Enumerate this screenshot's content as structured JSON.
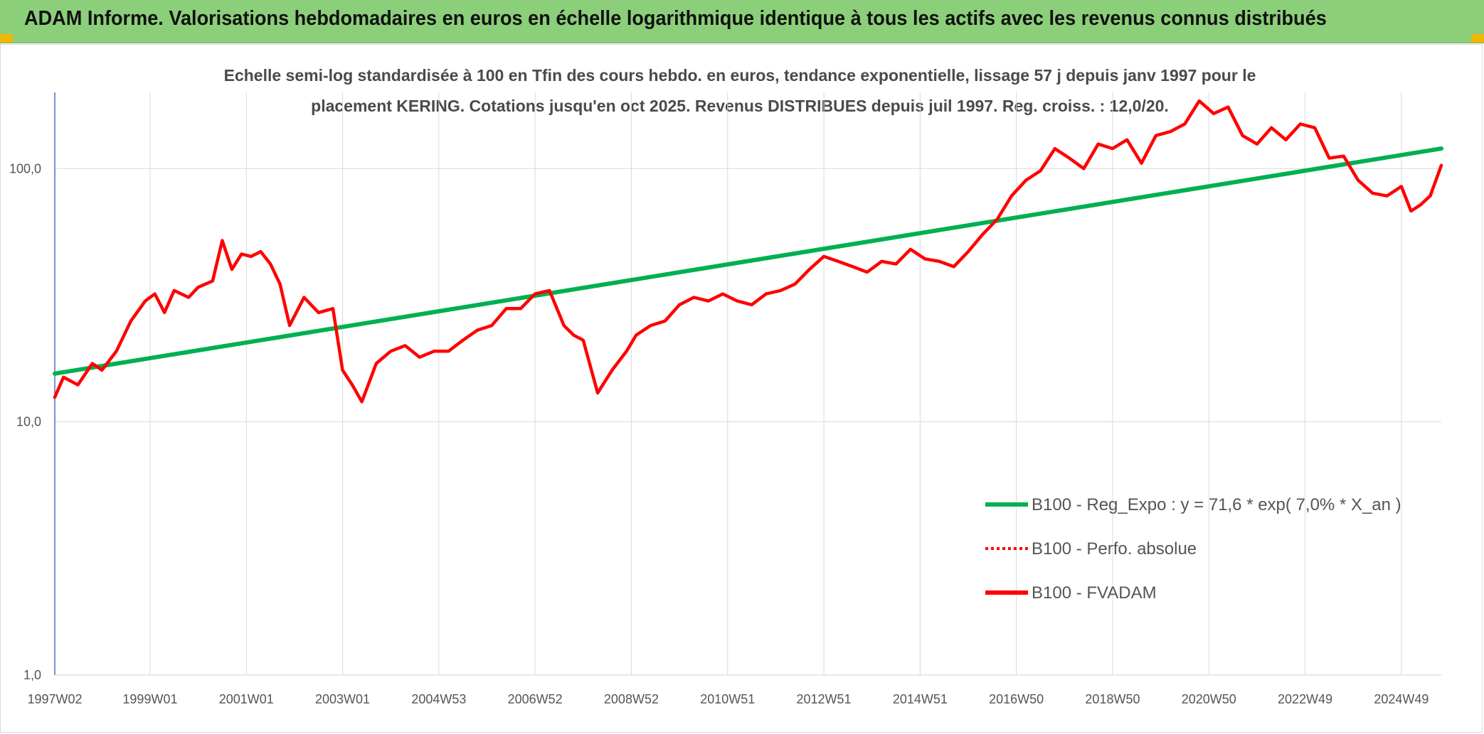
{
  "header": {
    "title": "ADAM Informe. Valorisations hebdomadaires en euros en échelle logarithmique identique à tous les actifs avec les revenus connus distribués"
  },
  "colors": {
    "banner": "#8ccf7a",
    "regression": "#00b050",
    "fvadam": "#ff0000",
    "perfo": "#ff0000",
    "axis_text": "#555555",
    "grid": "#d9d9d9"
  },
  "chart_data": {
    "type": "line",
    "title": "Echelle semi-log standardisée à 100 en Tfin des cours hebdo. en euros, tendance exponentielle, lissage 57 j depuis janv 1997 pour le",
    "subtitle": "placement KERING. Cotations jusqu'en oct 2025. Revenus DISTRIBUES depuis juil 1997. Reg. croiss. : 12,0/20.",
    "y_scale": "log",
    "ylim": [
      1,
      200
    ],
    "y_ticks": [
      {
        "value": 1,
        "label": "1,0"
      },
      {
        "value": 10,
        "label": "10,0"
      },
      {
        "value": 100,
        "label": "100,0"
      }
    ],
    "x_range": [
      1997.02,
      2025.83
    ],
    "x_ticks": [
      {
        "value": 1997.02,
        "label": "1997W02"
      },
      {
        "value": 1999.0,
        "label": "1999W01"
      },
      {
        "value": 2001.0,
        "label": "2001W01"
      },
      {
        "value": 2003.0,
        "label": "2003W01"
      },
      {
        "value": 2005.0,
        "label": "2004W53"
      },
      {
        "value": 2007.0,
        "label": "2006W52"
      },
      {
        "value": 2009.0,
        "label": "2008W52"
      },
      {
        "value": 2011.0,
        "label": "2010W51"
      },
      {
        "value": 2013.0,
        "label": "2012W51"
      },
      {
        "value": 2015.0,
        "label": "2014W51"
      },
      {
        "value": 2017.0,
        "label": "2016W50"
      },
      {
        "value": 2019.0,
        "label": "2018W50"
      },
      {
        "value": 2021.0,
        "label": "2020W50"
      },
      {
        "value": 2023.0,
        "label": "2022W49"
      },
      {
        "value": 2025.0,
        "label": "2024W49"
      }
    ],
    "grid": true,
    "legend_position": "bottom-right",
    "series": [
      {
        "name": "B100 - Reg_Expo : y = 71,6 * exp( 7,0% *  X_an )",
        "style": "solid",
        "color": "#00b050",
        "x": [
          1997.02,
          2025.83
        ],
        "y": [
          15.5,
          120
        ]
      },
      {
        "name": "B100 - Perfo. absolue",
        "style": "dotted",
        "color": "#ff0000",
        "x": [],
        "y": []
      },
      {
        "name": "B100 - FVADAM",
        "style": "solid",
        "color": "#ff0000",
        "x": [
          1997.02,
          1997.2,
          1997.5,
          1997.8,
          1998.0,
          1998.3,
          1998.6,
          1998.9,
          1999.1,
          1999.3,
          1999.5,
          1999.8,
          2000.0,
          2000.3,
          2000.5,
          2000.7,
          2000.9,
          2001.1,
          2001.3,
          2001.5,
          2001.7,
          2001.9,
          2002.2,
          2002.5,
          2002.8,
          2003.0,
          2003.2,
          2003.4,
          2003.7,
          2004.0,
          2004.3,
          2004.6,
          2004.9,
          2005.2,
          2005.5,
          2005.8,
          2006.1,
          2006.4,
          2006.7,
          2007.0,
          2007.3,
          2007.6,
          2007.8,
          2008.0,
          2008.3,
          2008.6,
          2008.9,
          2009.1,
          2009.4,
          2009.7,
          2010.0,
          2010.3,
          2010.6,
          2010.9,
          2011.2,
          2011.5,
          2011.8,
          2012.1,
          2012.4,
          2012.7,
          2013.0,
          2013.3,
          2013.6,
          2013.9,
          2014.2,
          2014.5,
          2014.8,
          2015.1,
          2015.4,
          2015.7,
          2016.0,
          2016.3,
          2016.6,
          2016.9,
          2017.2,
          2017.5,
          2017.8,
          2018.1,
          2018.4,
          2018.7,
          2019.0,
          2019.3,
          2019.6,
          2019.9,
          2020.2,
          2020.5,
          2020.8,
          2021.1,
          2021.4,
          2021.7,
          2022.0,
          2022.3,
          2022.6,
          2022.9,
          2023.2,
          2023.5,
          2023.8,
          2024.1,
          2024.4,
          2024.7,
          2025.0,
          2025.2,
          2025.4,
          2025.6,
          2025.83
        ],
        "y": [
          12.5,
          15,
          14,
          17,
          16,
          19,
          25,
          30,
          32,
          27,
          33,
          31,
          34,
          36,
          52,
          40,
          46,
          45,
          47,
          42,
          35,
          24,
          31,
          27,
          28,
          16,
          14,
          12,
          17,
          19,
          20,
          18,
          19,
          19,
          21,
          23,
          24,
          28,
          28,
          32,
          33,
          24,
          22,
          21,
          13,
          16,
          19,
          22,
          24,
          25,
          29,
          31,
          30,
          32,
          30,
          29,
          32,
          33,
          35,
          40,
          45,
          43,
          41,
          39,
          43,
          42,
          48,
          44,
          43,
          41,
          47,
          55,
          63,
          78,
          90,
          98,
          120,
          110,
          100,
          125,
          120,
          130,
          105,
          135,
          140,
          150,
          185,
          165,
          175,
          135,
          125,
          145,
          130,
          150,
          145,
          110,
          112,
          90,
          80,
          78,
          85,
          68,
          72,
          78,
          103
        ]
      }
    ]
  }
}
